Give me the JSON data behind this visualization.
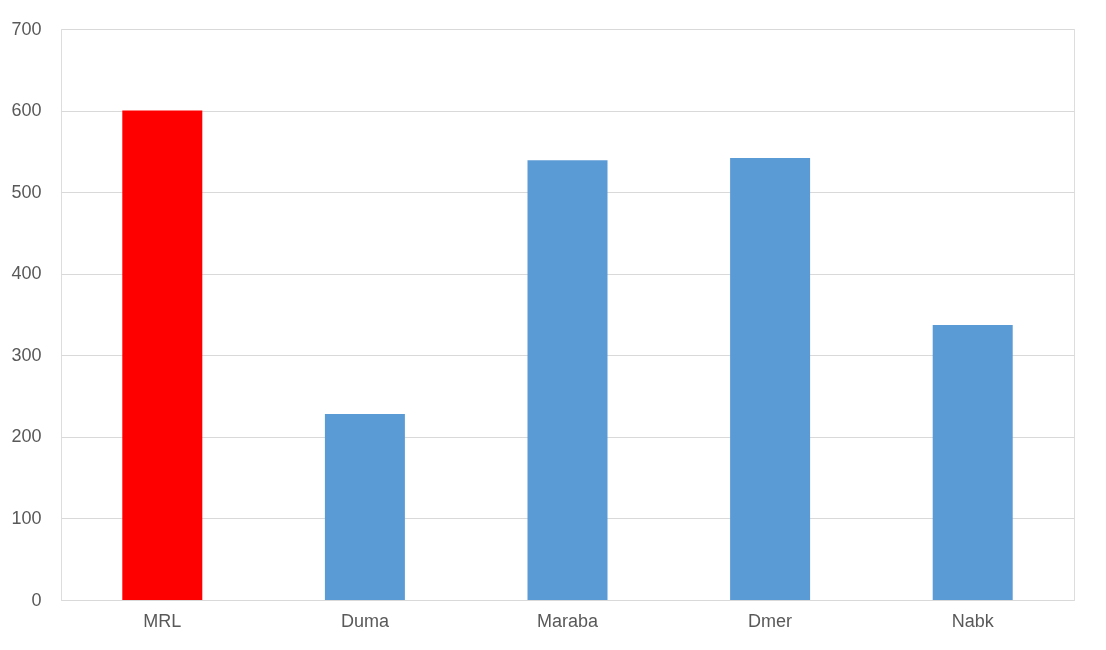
{
  "chart_data": {
    "type": "bar",
    "categories": [
      "MRL",
      "Duma",
      "Maraba",
      "Dmer",
      "Nabk"
    ],
    "values": [
      600,
      228,
      539,
      542,
      337
    ],
    "colors": [
      "#ff0000",
      "#5b9bd5",
      "#5b9bd5",
      "#5b9bd5",
      "#5b9bd5"
    ],
    "ylim": [
      0,
      700
    ],
    "yticks": [
      0,
      100,
      200,
      300,
      400,
      500,
      600,
      700
    ],
    "grid": "y"
  }
}
